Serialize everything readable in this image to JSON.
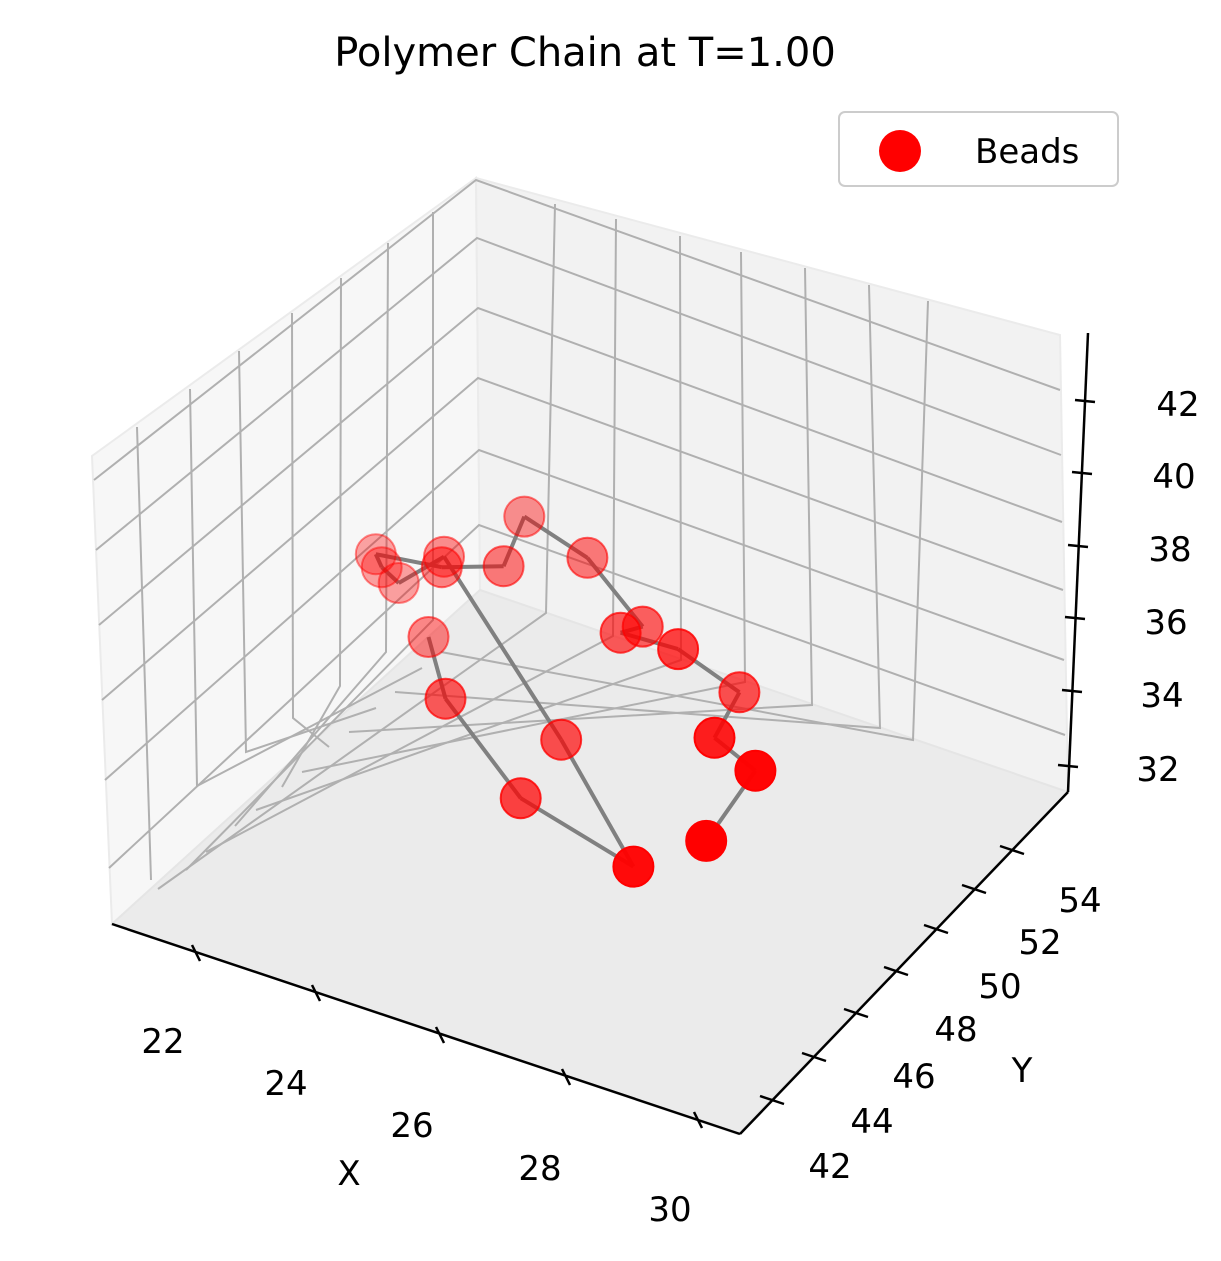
{
  "chart_data": {
    "type": "scatter",
    "projection": "3d",
    "title": "Polymer Chain at T=1.00",
    "xlabel": "X",
    "ylabel": "Y",
    "zlabel": "",
    "xticks": [
      "22",
      "24",
      "26",
      "28",
      "30"
    ],
    "yticks": [
      "42",
      "44",
      "46",
      "48",
      "50",
      "52",
      "54"
    ],
    "zticks": [
      "32",
      "34",
      "36",
      "38",
      "40",
      "42"
    ],
    "grid": true,
    "legend": {
      "position": "top-right",
      "entries": [
        "Beads"
      ]
    },
    "colors": {
      "beads": "#ff0000",
      "bonds": "#808080",
      "pane": "#f2f2f2",
      "grid": "#b0b0b0"
    },
    "series": [
      {
        "name": "Beads",
        "points": [
          {
            "x": 24.0,
            "y": 50.0,
            "z": 36.5
          },
          {
            "x": 22.9,
            "y": 47.3,
            "z": 35.4
          },
          {
            "x": 23.9,
            "y": 46.7,
            "z": 33.5
          },
          {
            "x": 24.8,
            "y": 44.6,
            "z": 33.1
          },
          {
            "x": 25.4,
            "y": 48.2,
            "z": 35.3
          },
          {
            "x": 24.6,
            "y": 50.6,
            "z": 38.8
          },
          {
            "x": 24.1,
            "y": 51.2,
            "z": 37.5
          },
          {
            "x": 23.7,
            "y": 51.0,
            "z": 37.8
          },
          {
            "x": 23.6,
            "y": 51.0,
            "z": 38.1
          },
          {
            "x": 24.2,
            "y": 49.9,
            "z": 38.6
          },
          {
            "x": 25.5,
            "y": 50.3,
            "z": 39.2
          },
          {
            "x": 26.8,
            "y": 52.1,
            "z": 40.5
          },
          {
            "x": 27.6,
            "y": 51.5,
            "z": 40.1
          },
          {
            "x": 28.1,
            "y": 50.6,
            "z": 38.9
          },
          {
            "x": 27.4,
            "y": 50.0,
            "z": 38.6
          },
          {
            "x": 27.9,
            "y": 49.0,
            "z": 38.9
          },
          {
            "x": 30.0,
            "y": 51.0,
            "z": 38.0
          },
          {
            "x": 27.6,
            "y": 47.2,
            "z": 37.1
          },
          {
            "x": 27.7,
            "y": 46.0,
            "z": 36.8
          },
          {
            "x": 26.3,
            "y": 45.0,
            "z": 34.5
          }
        ]
      }
    ]
  }
}
